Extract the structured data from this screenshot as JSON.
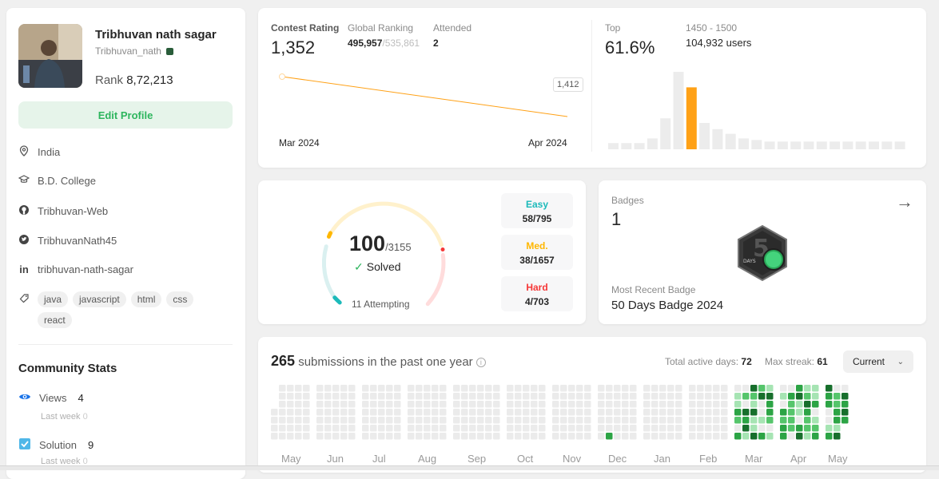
{
  "profile": {
    "name": "Tribhuvan nath sagar",
    "handle": "Tribhuvan_nath",
    "rank_label": "Rank",
    "rank_value": "8,72,213",
    "edit_label": "Edit Profile",
    "location": "India",
    "school": "B.D. College",
    "github": "Tribhuvan-Web",
    "twitter": "TribhuvanNath45",
    "linkedin": "tribhuvan-nath-sagar",
    "skills": [
      "java",
      "javascript",
      "html",
      "css",
      "react"
    ]
  },
  "community": {
    "title": "Community Stats",
    "views_label": "Views",
    "views_value": "4",
    "views_sub": "Last week",
    "views_sub_val": "0",
    "solution_label": "Solution",
    "solution_value": "9",
    "solution_sub": "Last week",
    "solution_sub_val": "0"
  },
  "contest": {
    "rating_label": "Contest Rating",
    "rating_value": "1,352",
    "global_label": "Global Ranking",
    "global_value": "495,957",
    "global_total": "/535,861",
    "attended_label": "Attended",
    "attended_value": "2",
    "tooltip_value": "1,412",
    "start_month": "Mar 2024",
    "end_month": "Apr 2024",
    "top_label": "Top",
    "top_value": "61.6%",
    "range_label": "1450 - 1500",
    "users_label": "104,932 users"
  },
  "chart_data": {
    "type": "bar",
    "title": "",
    "values": [
      4,
      4,
      4,
      7,
      20,
      50,
      40,
      17,
      13,
      10,
      7,
      6,
      5,
      5,
      5,
      5,
      5,
      5,
      5,
      5,
      5,
      5,
      5
    ],
    "highlight_index": 6,
    "colors": {
      "normal": "#ececec",
      "highlight": "#ffa116"
    }
  },
  "rating_line": {
    "values": [
      1412,
      1352
    ],
    "labels": [
      "Mar 2024",
      "Apr 2024"
    ],
    "color": "#ffa116"
  },
  "solved": {
    "solved_value": "100",
    "total_value": "/3155",
    "solved_label": "Solved",
    "attempting": "11 Attempting",
    "easy_label": "Easy",
    "easy_value": "58/795",
    "med_label": "Med.",
    "med_value": "38/1657",
    "hard_label": "Hard",
    "hard_value": "4/703",
    "colors": {
      "easy": "#1cbaba",
      "medium": "#ffb700",
      "hard": "#f63737"
    }
  },
  "badges": {
    "label": "Badges",
    "count": "1",
    "badge_text_big": "50",
    "badge_text_small": "DAYS",
    "recent_label": "Most Recent Badge",
    "recent_name": "50 Days Badge 2024"
  },
  "submissions": {
    "count": "265",
    "text": "submissions in the past one year",
    "active_label": "Total active days:",
    "active_value": "72",
    "streak_label": "Max streak:",
    "streak_value": "61",
    "select_value": "Current",
    "months": [
      "May",
      "Jun",
      "Jul",
      "Aug",
      "Sep",
      "Oct",
      "Nov",
      "Dec",
      "Jan",
      "Feb",
      "Mar",
      "Apr",
      "May"
    ],
    "colors": {
      "empty": "#ebebeb",
      "l1": "#a6e4b3",
      "l2": "#55c56b",
      "l3": "#2ca445",
      "l4": "#176f2c"
    }
  }
}
